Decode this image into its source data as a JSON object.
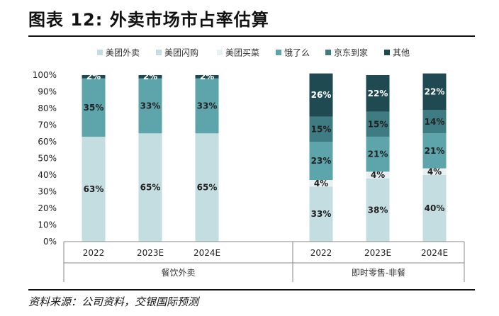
{
  "title": "图表 12: 外卖市场市占率估算",
  "source": "资料来源：公司资料，交银国际预测",
  "chart_data": {
    "type": "bar",
    "stacked": true,
    "y_axis": {
      "range": [
        0,
        100
      ],
      "ticks": [
        "0%",
        "10%",
        "20%",
        "30%",
        "40%",
        "50%",
        "60%",
        "70%",
        "80%",
        "90%",
        "100%"
      ]
    },
    "legend": {
      "position": "top"
    },
    "groups": [
      {
        "name": "餐饮外卖",
        "categories": [
          "2022",
          "2023E",
          "2024E"
        ]
      },
      {
        "name": "即时零售-非餐",
        "categories": [
          "2022",
          "2023E",
          "2024E"
        ]
      }
    ],
    "series": [
      {
        "name": "美团外卖",
        "color": "#c3dde1",
        "values": [
          63,
          65,
          65,
          0,
          0,
          0
        ],
        "labels": [
          "63%",
          "65%",
          "65%",
          "",
          "",
          ""
        ]
      },
      {
        "name": "美团闪购",
        "color": "#c3dde1",
        "values": [
          0,
          0,
          0,
          33,
          38,
          40
        ],
        "labels": [
          "",
          "",
          "",
          "33%",
          "38%",
          "40%"
        ]
      },
      {
        "name": "美团买菜",
        "color": "#e8f0f1",
        "values": [
          0,
          0,
          0,
          4,
          4,
          4
        ],
        "labels": [
          "",
          "",
          "",
          "4%",
          "4%",
          "4%"
        ]
      },
      {
        "name": "饿了么",
        "color": "#5ea4ab",
        "values": [
          35,
          33,
          33,
          23,
          21,
          21
        ],
        "labels": [
          "35%",
          "33%",
          "33%",
          "23%",
          "21%",
          "21%"
        ]
      },
      {
        "name": "京东到家",
        "color": "#3f7b82",
        "values": [
          0,
          0,
          0,
          15,
          15,
          14
        ],
        "labels": [
          "",
          "",
          "",
          "15%",
          "15%",
          "14%"
        ]
      },
      {
        "name": "其他",
        "color": "#1f4a52",
        "values": [
          2,
          2,
          2,
          26,
          22,
          22
        ],
        "labels": [
          "2%",
          "2%",
          "2%",
          "26%",
          "22%",
          "22%"
        ]
      }
    ]
  }
}
